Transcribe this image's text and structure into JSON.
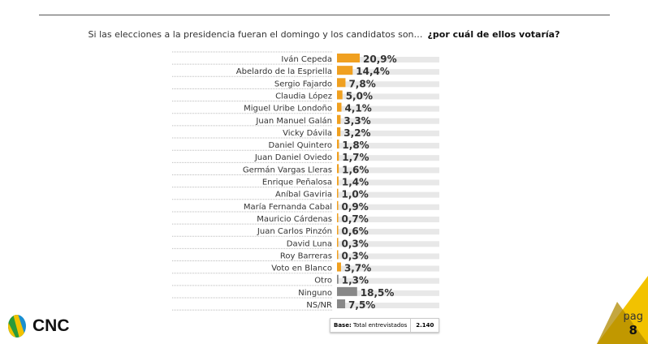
{
  "question": "Si las elecciones a la presidencia fueran el domingo y los candidatos son…",
  "question_bold": "¿por cuál de ellos votaría?",
  "chart_data": {
    "type": "bar",
    "orientation": "horizontal",
    "categories": [
      "Iván Cepeda",
      "Abelardo de la Espriella",
      "Sergio Fajardo",
      "Claudia López",
      "Miguel Uribe Londoño",
      "Juan Manuel Galán",
      "Vicky Dávila",
      "Daniel Quintero",
      "Juan Daniel Oviedo",
      "Germán Vargas Lleras",
      "Enrique Peñalosa",
      "Aníbal Gaviria",
      "María Fernanda Cabal",
      "Mauricio Cárdenas",
      "Juan Carlos Pinzón",
      "David Luna",
      "Roy Barreras",
      "Voto en Blanco",
      "Otro",
      "Ninguno",
      "NS/NR"
    ],
    "values": [
      20.9,
      14.4,
      7.8,
      5.0,
      4.1,
      3.3,
      3.2,
      1.8,
      1.7,
      1.6,
      1.4,
      1.0,
      0.9,
      0.7,
      0.6,
      0.3,
      0.3,
      3.7,
      1.3,
      18.5,
      7.5
    ],
    "value_labels": [
      "20,9%",
      "14,4%",
      "7,8%",
      "5,0%",
      "4,1%",
      "3,3%",
      "3,2%",
      "1,8%",
      "1,7%",
      "1,6%",
      "1,4%",
      "1,0%",
      "0,9%",
      "0,7%",
      "0,6%",
      "0,3%",
      "0,3%",
      "3,7%",
      "1,3%",
      "18,5%",
      "7,5%"
    ],
    "bar_colors": [
      "#f0a020",
      "#f0a020",
      "#f0a020",
      "#f0a020",
      "#f0a020",
      "#f0a020",
      "#f0a020",
      "#f0a020",
      "#f0a020",
      "#f0a020",
      "#f0a020",
      "#f0a020",
      "#f0a020",
      "#f0a020",
      "#f0a020",
      "#f0a020",
      "#f0a020",
      "#f0a020",
      "#888888",
      "#888888",
      "#888888"
    ],
    "xlim": [
      0,
      100
    ]
  },
  "base": {
    "label": "Base:",
    "text": "Total entrevistados",
    "value": "2.140"
  },
  "logo": {
    "text": "CNC"
  },
  "page": {
    "label": "pag",
    "number": "8"
  },
  "colors": {
    "accent": "#f0a020",
    "gray": "#888888",
    "track": "#e8e8e8",
    "corner": "#f2c200"
  }
}
